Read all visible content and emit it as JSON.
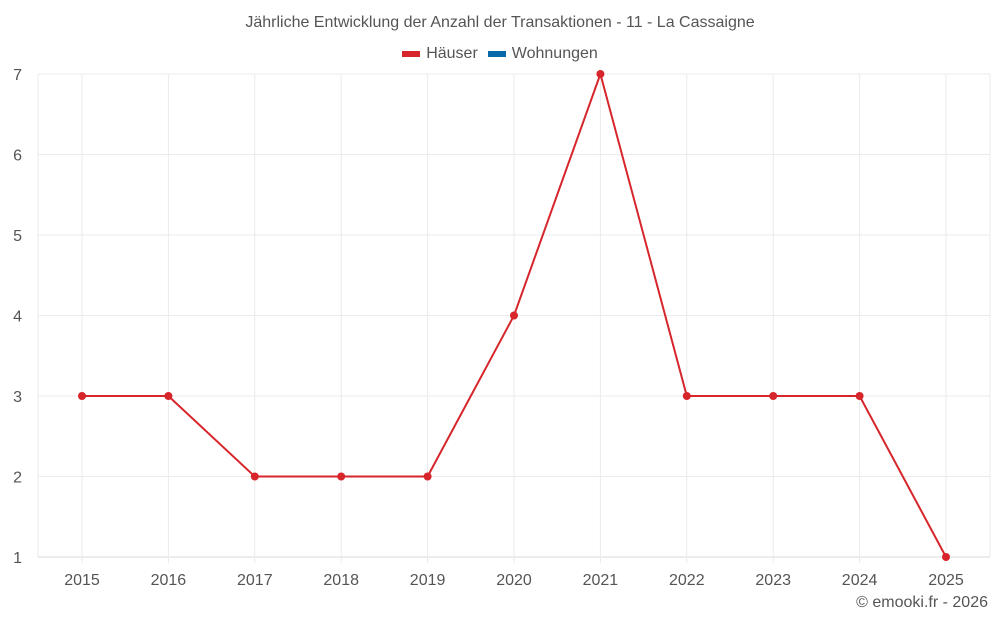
{
  "title": "Jährliche Entwicklung der Anzahl der Transaktionen - 11 - La Cassaigne",
  "legend": [
    {
      "label": "Häuser",
      "color": "#d7262b"
    },
    {
      "label": "Wohnungen",
      "color": "#0868a8"
    }
  ],
  "credit": "© emooki.fr - 2026",
  "chart_data": {
    "type": "line",
    "title": "Jährliche Entwicklung der Anzahl der Transaktionen - 11 - La Cassaigne",
    "xlabel": "",
    "ylabel": "",
    "categories": [
      "2015",
      "2016",
      "2017",
      "2018",
      "2019",
      "2020",
      "2021",
      "2022",
      "2023",
      "2024",
      "2025"
    ],
    "series": [
      {
        "name": "Häuser",
        "color": "#d7262b",
        "values": [
          3,
          3,
          2,
          2,
          2,
          4,
          7,
          3,
          3,
          3,
          1
        ]
      },
      {
        "name": "Wohnungen",
        "color": "#0868a8",
        "values": []
      }
    ],
    "ylim": [
      1,
      7
    ],
    "yticks": [
      1,
      2,
      3,
      4,
      5,
      6,
      7
    ],
    "grid": true,
    "legend_position": "top"
  }
}
